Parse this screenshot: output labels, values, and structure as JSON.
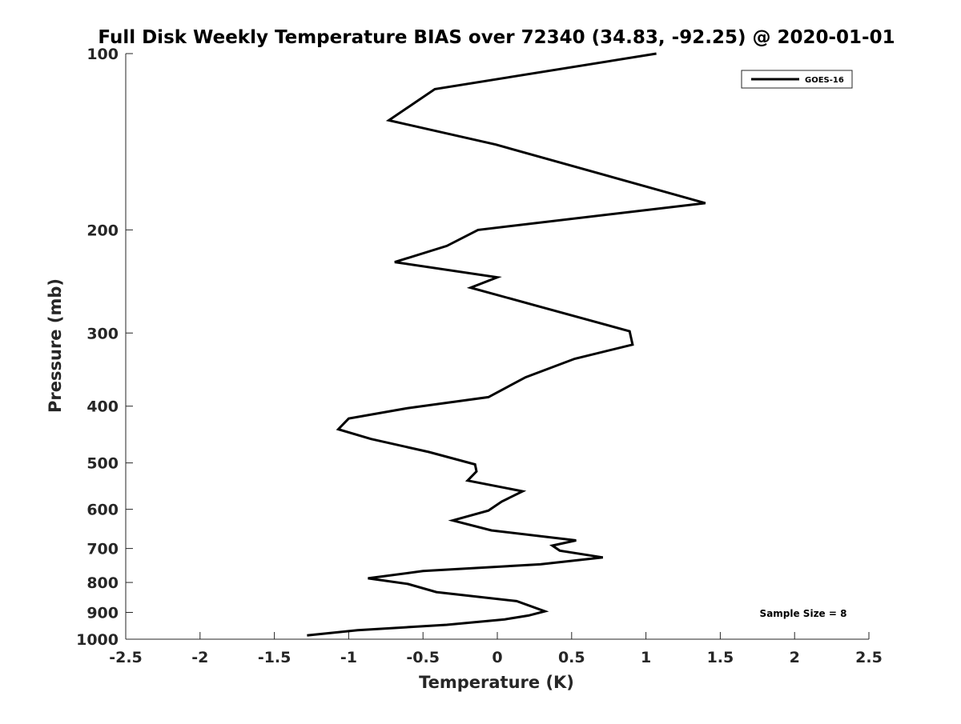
{
  "chart_data": {
    "type": "line",
    "title": "Full Disk Weekly Temperature BIAS over 72340 (34.83, -92.25) @ 2020-01-01",
    "xlabel": "Temperature (K)",
    "ylabel": "Pressure (mb)",
    "xlim": [
      -2.5,
      2.5
    ],
    "ylim": [
      100,
      1000
    ],
    "y_scale": "log",
    "y_reversed": true,
    "grid": false,
    "legend_position": "top-right",
    "x_ticks": [
      {
        "value": -2.5,
        "label": "-2.5"
      },
      {
        "value": -2,
        "label": "-2"
      },
      {
        "value": -1.5,
        "label": "-1.5"
      },
      {
        "value": -1,
        "label": "-1"
      },
      {
        "value": -0.5,
        "label": "-0.5"
      },
      {
        "value": 0,
        "label": "0"
      },
      {
        "value": 0.5,
        "label": "0.5"
      },
      {
        "value": 1,
        "label": "1"
      },
      {
        "value": 1.5,
        "label": "1.5"
      },
      {
        "value": 2,
        "label": "2"
      },
      {
        "value": 2.5,
        "label": "2.5"
      }
    ],
    "y_ticks": [
      {
        "value": 100,
        "label": "100"
      },
      {
        "value": 200,
        "label": "200"
      },
      {
        "value": 300,
        "label": "300"
      },
      {
        "value": 400,
        "label": "400"
      },
      {
        "value": 500,
        "label": "500"
      },
      {
        "value": 600,
        "label": "600"
      },
      {
        "value": 700,
        "label": "700"
      },
      {
        "value": 800,
        "label": "800"
      },
      {
        "value": 900,
        "label": "900"
      },
      {
        "value": 1000,
        "label": "1000"
      }
    ],
    "series": [
      {
        "name": "GOES-16",
        "color": "#000000",
        "x": [
          1.07,
          -0.42,
          -0.73,
          -0.01,
          1.4,
          -0.13,
          -0.34,
          -0.69,
          0.0,
          -0.18,
          0.89,
          0.91,
          0.52,
          0.19,
          -0.06,
          -0.6,
          -1.0,
          -1.07,
          -0.85,
          -0.46,
          -0.15,
          -0.14,
          -0.2,
          0.17,
          0.03,
          -0.06,
          -0.3,
          -0.04,
          0.53,
          0.37,
          0.42,
          0.71,
          0.29,
          -0.5,
          -0.87,
          -0.6,
          -0.41,
          0.13,
          0.32,
          0.21,
          0.05,
          -0.34,
          -0.94,
          -1.28
        ],
        "y": [
          100,
          115,
          130,
          143,
          180,
          200,
          213,
          227,
          241,
          251,
          298,
          314,
          332,
          357,
          386,
          403,
          420,
          438,
          455,
          479,
          503,
          517,
          536,
          559,
          582,
          603,
          627,
          652,
          678,
          692,
          706,
          725,
          745,
          765,
          787,
          805,
          831,
          861,
          896,
          911,
          925,
          945,
          965,
          985
        ]
      }
    ],
    "annotations": [
      {
        "text": "Sample Size = 8",
        "position": "bottom-right"
      }
    ]
  }
}
